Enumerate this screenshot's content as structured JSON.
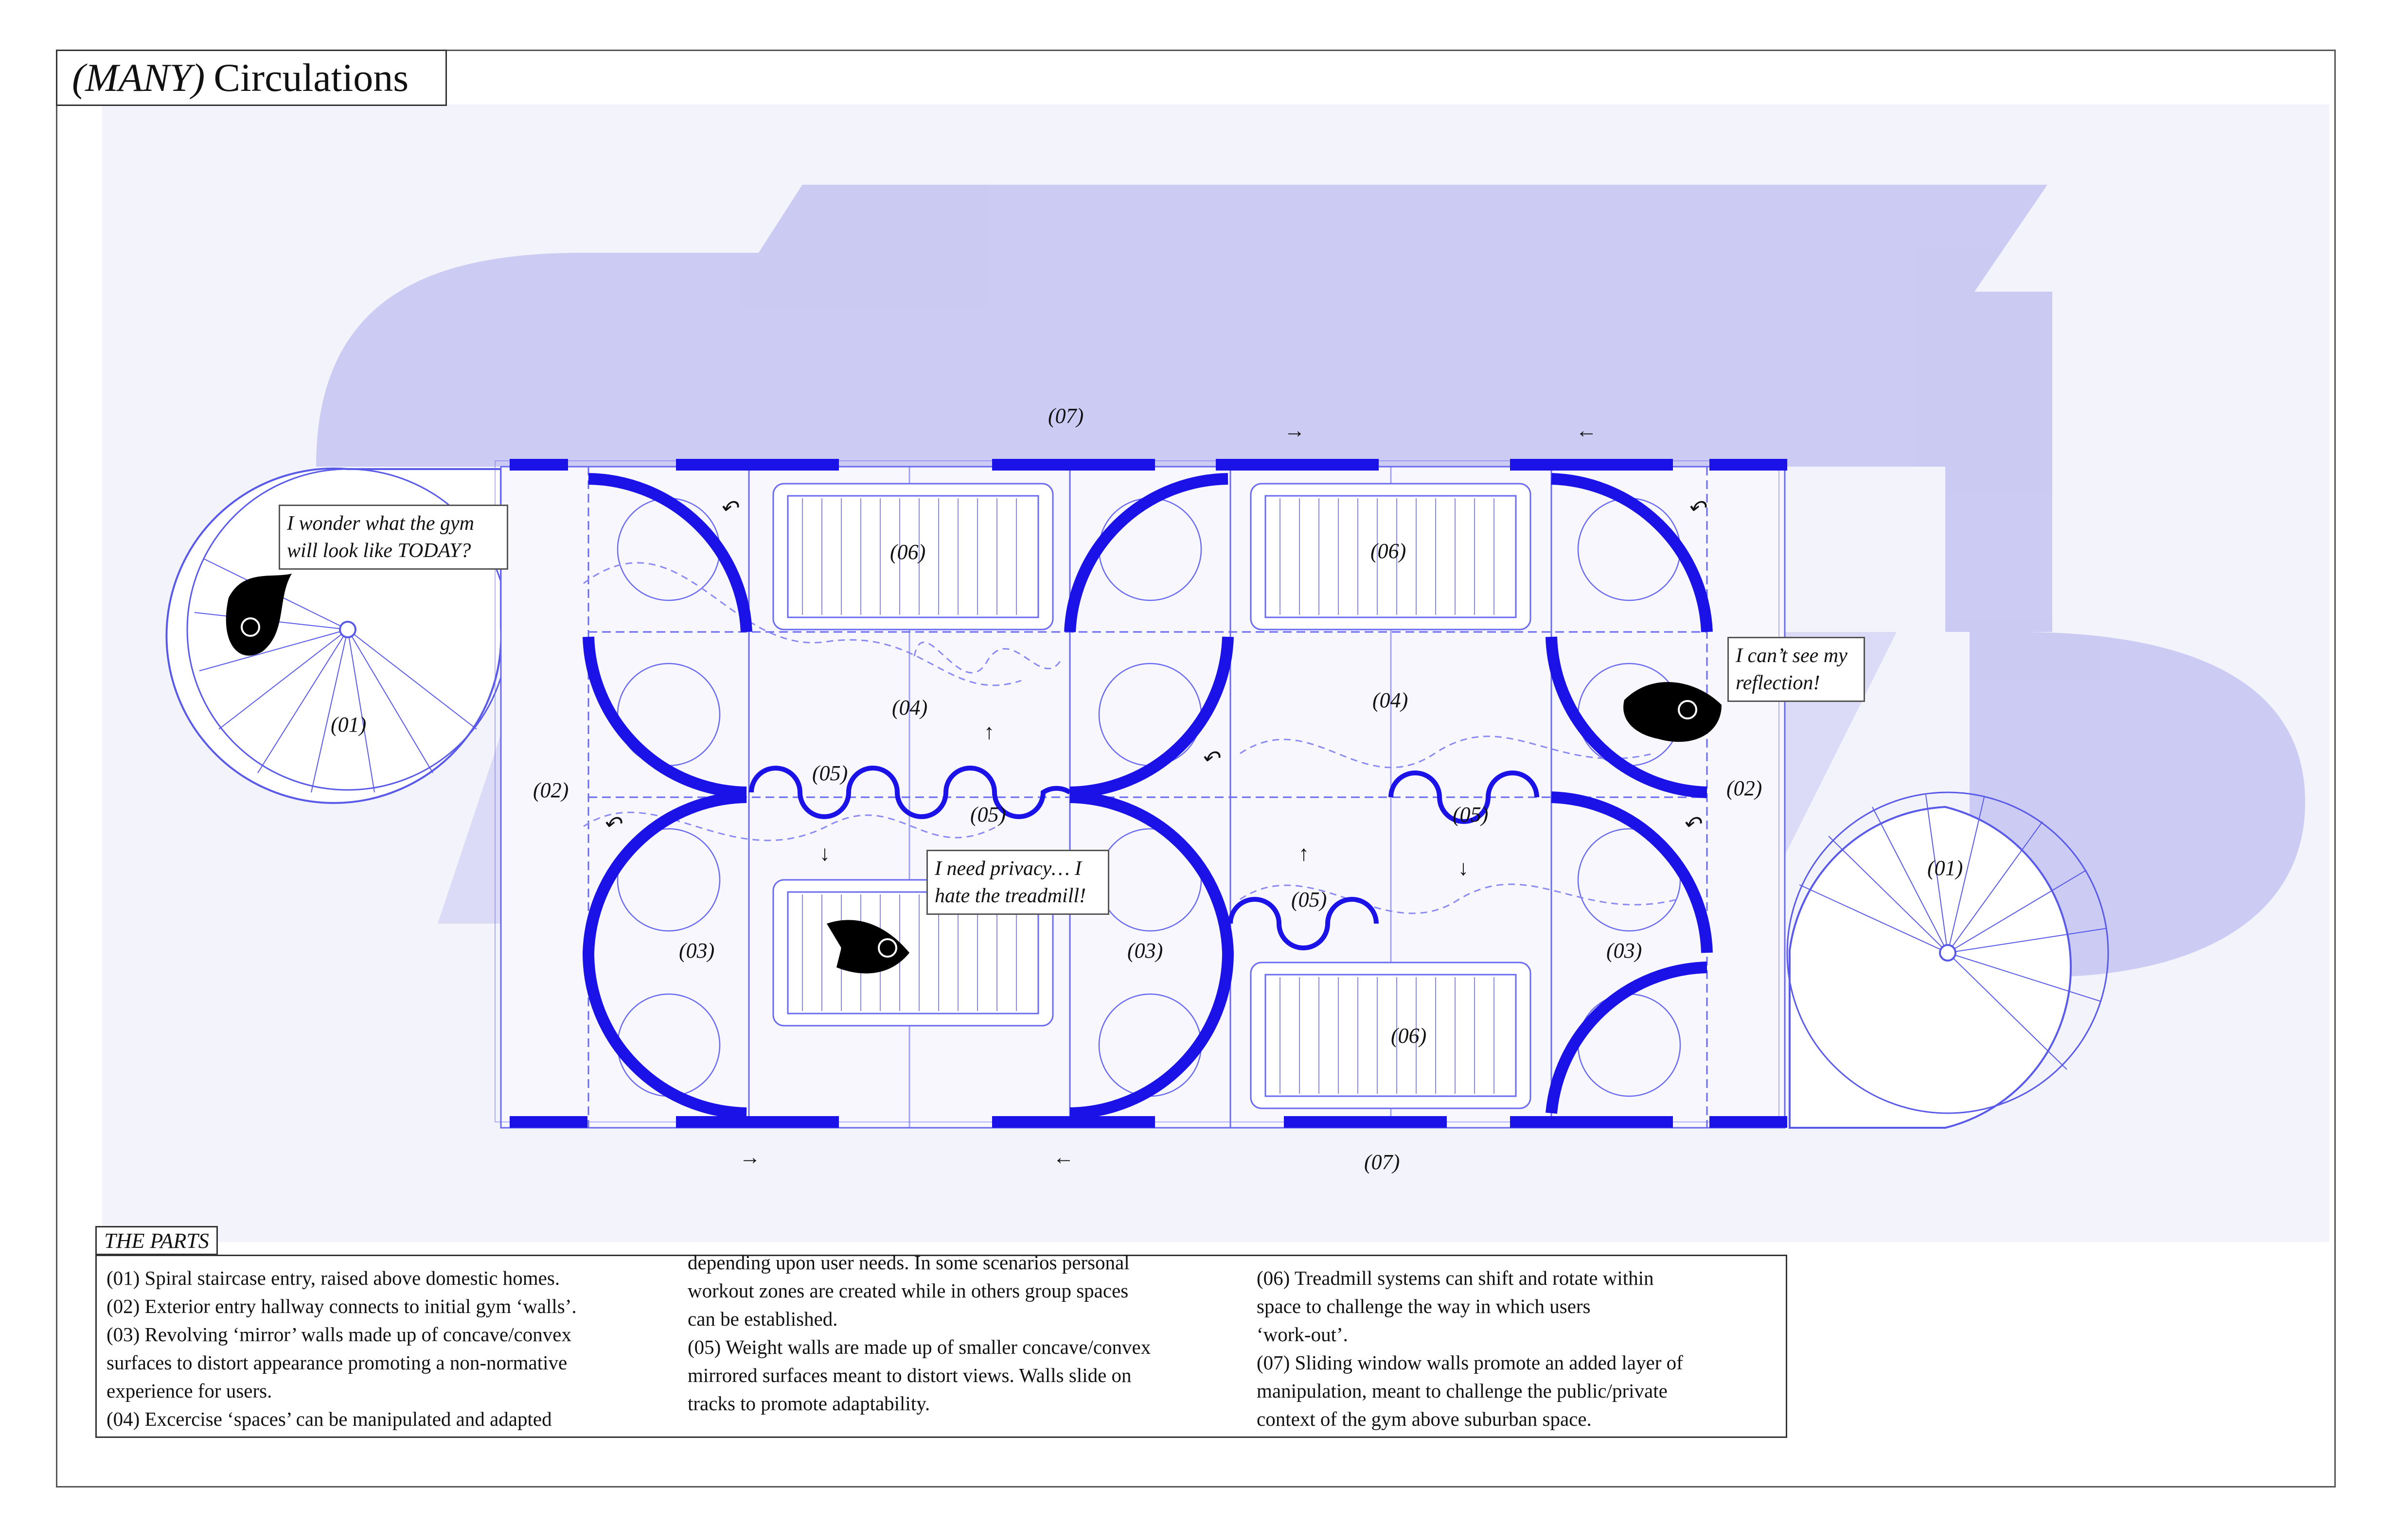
{
  "title": {
    "emphasis": "(MANY)",
    "text": "Circulations"
  },
  "colors": {
    "accent_blue": "#1a12e6",
    "shadow_lavender": "#b8b8ef",
    "panel_lavender": "#f1f1fb",
    "line_blue": "#6a6af0"
  },
  "plan_labels": {
    "stair_left": "(01)",
    "stair_right": "(01)",
    "hall_left": "(02)",
    "hall_right": "(02)",
    "mirror_a": "(03)",
    "mirror_b": "(03)",
    "mirror_c": "(03)",
    "space_a": "(04)",
    "space_b": "(04)",
    "weight_a": "(05)",
    "weight_b": "(05)",
    "weight_c": "(05)",
    "weight_d": "(05)",
    "tread_a": "(06)",
    "tread_b": "(06)",
    "tread_c": "(06)",
    "window_top": "(07)",
    "window_bottom": "(07)"
  },
  "arrows": {
    "right": "→",
    "left": "←",
    "up": "↑",
    "down": "↓",
    "curve": "↶"
  },
  "bubbles": [
    {
      "line1": "I wonder what the gym",
      "line2": "will look like TODAY?"
    },
    {
      "line1": "I need privacy… I",
      "line2": "hate the treadmill!"
    },
    {
      "line1": "I can’t see my",
      "line2": "reflection!"
    }
  ],
  "parts": {
    "heading": "THE PARTS",
    "col1": [
      "(01) Spiral staircase entry, raised above domestic homes.",
      "(02) Exterior entry hallway connects to initial gym ‘walls’.",
      "(03) Revolving ‘mirror’ walls made up of concave/convex",
      "surfaces to distort appearance promoting a non-normative",
      "experience for users.",
      "(04) Excercise ‘spaces’ can be manipulated and adapted"
    ],
    "col2": [
      "depending upon user needs. In some scenarios personal",
      "workout zones are created while in others group spaces",
      "can be established.",
      "(05) Weight walls are made up of smaller concave/convex",
      "mirrored surfaces meant to distort views. Walls slide on",
      "tracks to promote adaptability."
    ],
    "col3": [
      "(06) Treadmill systems can shift and rotate within",
      "space to challenge the way in which users",
      "‘work-out’.",
      "(07) Sliding window walls promote an added layer of",
      "manipulation, meant to challenge the public/private",
      "context of the gym above suburban space."
    ]
  }
}
